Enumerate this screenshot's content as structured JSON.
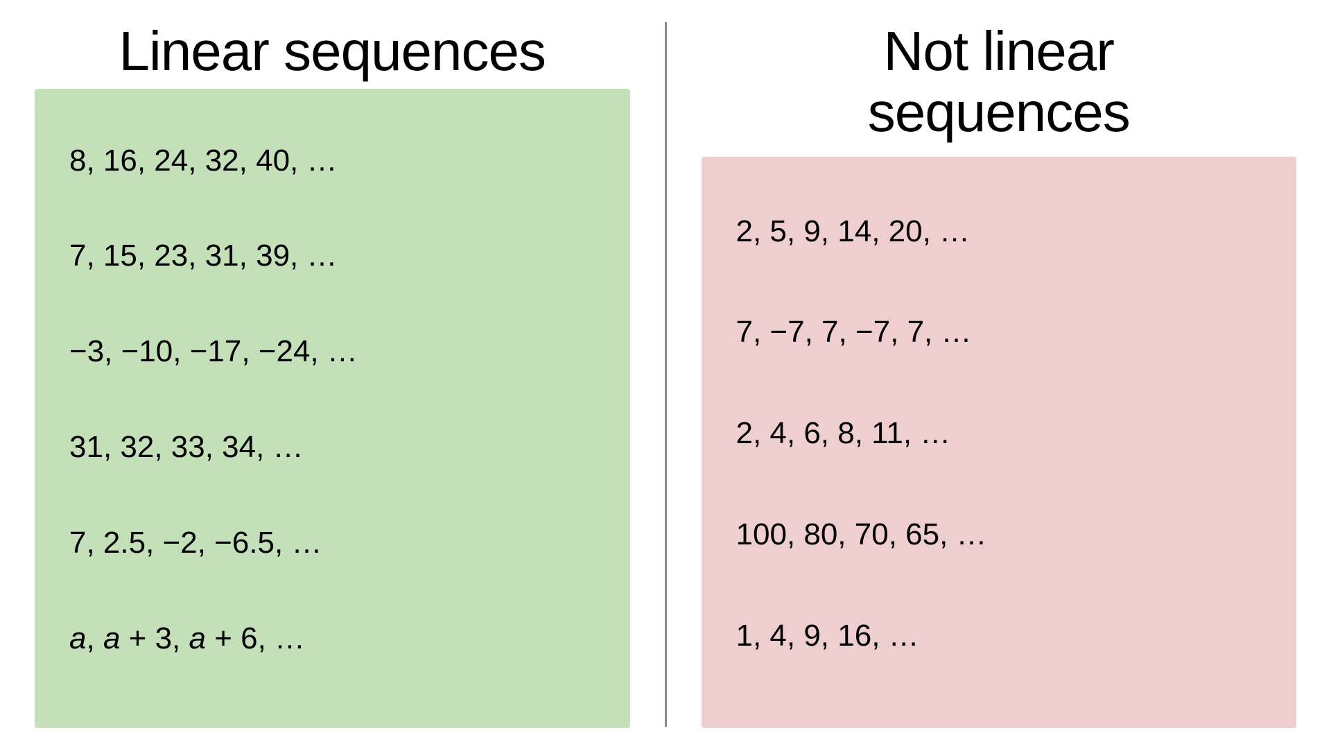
{
  "left": {
    "heading": "Linear sequences",
    "panel_bg": "#c3e0b8",
    "sequences": [
      "8, 16, 24, 32, 40, …",
      "7, 15, 23, 31, 39, …",
      "−3, −10, −17, −24, …",
      "31, 32, 33, 34, …",
      "7, 2.5, −2, −6.5, …"
    ],
    "algebraic_sequence": {
      "parts": [
        {
          "text": "a",
          "italic": true
        },
        {
          "text": ", ",
          "italic": false
        },
        {
          "text": "a",
          "italic": true
        },
        {
          "text": " + 3, ",
          "italic": false
        },
        {
          "text": "a",
          "italic": true
        },
        {
          "text": " + 6, …",
          "italic": false
        }
      ]
    }
  },
  "right": {
    "heading_line1": "Not linear",
    "heading_line2": "sequences",
    "panel_bg": "#efcecf",
    "sequences": [
      "2, 5, 9, 14, 20, …",
      "7, −7, 7, −7, 7, …",
      "2, 4, 6, 8, 11, …",
      "100, 80, 70, 65, …",
      "1, 4, 9, 16, …"
    ]
  },
  "style": {
    "heading_fontsize": 80,
    "seq_fontsize": 44,
    "heading_color": "#000000",
    "text_color": "#000000",
    "background": "#ffffff",
    "divider_color": "#888888"
  }
}
